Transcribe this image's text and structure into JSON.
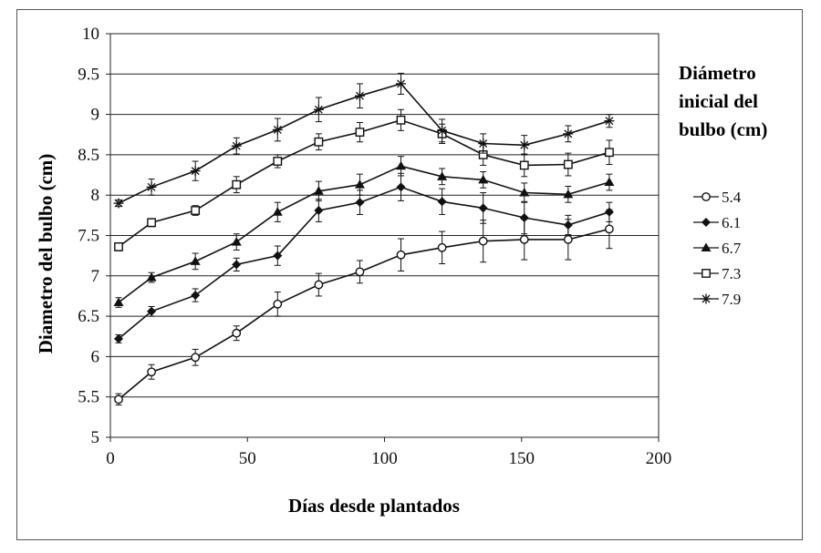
{
  "chart_data": {
    "type": "line",
    "xlabel": "Días desde plantados",
    "ylabel": "Diametro del bulbo (cm)",
    "xlim": [
      0,
      200
    ],
    "ylim": [
      5,
      10
    ],
    "x_ticks": [
      0,
      50,
      100,
      150,
      200
    ],
    "y_ticks": [
      5,
      5.5,
      6,
      6.5,
      7,
      7.5,
      8,
      8.5,
      9,
      9.5,
      10
    ],
    "y_tick_labels": [
      "5",
      "5.5",
      "6",
      "6.5",
      "7",
      "7.5",
      "8",
      "8.5",
      "9",
      "9.5",
      "10"
    ],
    "grid": "horizontal",
    "legend_title_lines": [
      "Diámetro",
      "inicial del",
      "bulbo (cm)"
    ],
    "legend_placement": "right",
    "x": [
      3,
      15,
      31,
      46,
      61,
      76,
      91,
      106,
      121,
      136,
      151,
      167,
      182
    ],
    "series": [
      {
        "name": "5.4",
        "marker": "circle-open",
        "values": [
          5.47,
          5.81,
          5.99,
          6.29,
          6.65,
          6.89,
          7.05,
          7.26,
          7.35,
          7.43,
          7.45,
          7.45,
          7.58
        ],
        "errors": [
          0.07,
          0.09,
          0.1,
          0.09,
          0.15,
          0.14,
          0.14,
          0.2,
          0.2,
          0.26,
          0.25,
          0.25,
          0.24
        ]
      },
      {
        "name": "6.1",
        "marker": "diamond-filled",
        "values": [
          6.22,
          6.56,
          6.76,
          7.14,
          7.25,
          7.81,
          7.91,
          8.1,
          7.92,
          7.84,
          7.72,
          7.63,
          7.79
        ],
        "errors": [
          0.05,
          0.06,
          0.08,
          0.08,
          0.12,
          0.14,
          0.15,
          0.17,
          0.16,
          0.19,
          0.2,
          0.12,
          0.12
        ]
      },
      {
        "name": "6.7",
        "marker": "triangle-filled",
        "values": [
          6.67,
          6.98,
          7.18,
          7.42,
          7.79,
          8.05,
          8.13,
          8.36,
          8.23,
          8.19,
          8.03,
          8.01,
          8.16
        ],
        "errors": [
          0.06,
          0.06,
          0.1,
          0.1,
          0.12,
          0.12,
          0.13,
          0.12,
          0.1,
          0.1,
          0.12,
          0.1,
          0.1
        ]
      },
      {
        "name": "7.3",
        "marker": "square-open",
        "values": [
          7.36,
          7.66,
          7.81,
          8.13,
          8.42,
          8.66,
          8.78,
          8.93,
          8.76,
          8.5,
          8.37,
          8.38,
          8.53
        ],
        "errors": [
          0.05,
          0.05,
          0.06,
          0.1,
          0.08,
          0.1,
          0.12,
          0.13,
          0.12,
          0.13,
          0.14,
          0.14,
          0.15
        ]
      },
      {
        "name": "7.9",
        "marker": "star",
        "values": [
          7.9,
          8.1,
          8.3,
          8.61,
          8.81,
          9.06,
          9.23,
          9.38,
          8.8,
          8.64,
          8.62,
          8.76,
          8.92
        ],
        "errors": [
          0.04,
          0.1,
          0.12,
          0.1,
          0.14,
          0.15,
          0.15,
          0.13,
          0.14,
          0.12,
          0.12,
          0.1,
          0.08
        ]
      }
    ]
  }
}
